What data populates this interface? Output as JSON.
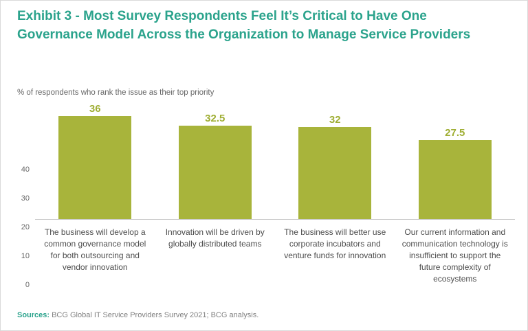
{
  "exhibit": {
    "title": "Exhibit 3 - Most Survey Respondents Feel It’s Critical to Have One Governance Model Across the Organization to Manage Service Providers",
    "subtitle": "% of respondents who rank the issue as their top priority",
    "sources_label": "Sources:",
    "sources_text": "BCG Global IT Service Providers Survey 2021; BCG analysis."
  },
  "colors": {
    "title": "#2ba38c",
    "bar": "#a8b43b",
    "value": "#9fae33",
    "axis-text": "#666666",
    "category-text": "#4d4d4d",
    "baseline": "#c9c9c9",
    "footer-text": "#808080",
    "border": "#d9d9d9"
  },
  "chart_data": {
    "type": "bar",
    "categories": [
      "The business will develop a common governance model for both outsourcing and vendor innovation",
      "Innovation will be driven by globally distributed teams",
      "The business will better use corporate incubators and venture funds for innovation",
      "Our current information and communication technology is insufficient to support the future complexity of ecosystems"
    ],
    "values": [
      36,
      32.5,
      32,
      27.5
    ],
    "title": "Exhibit 3 - Most Survey Respondents Feel It’s Critical to Have One Governance Model Across the Organization to Manage Service Providers",
    "xlabel": "",
    "ylabel": "% of respondents who rank the issue as their top priority",
    "ylim": [
      0,
      40
    ],
    "yticks": [
      0,
      10,
      20,
      30,
      40
    ],
    "grid": false,
    "legend": false
  }
}
